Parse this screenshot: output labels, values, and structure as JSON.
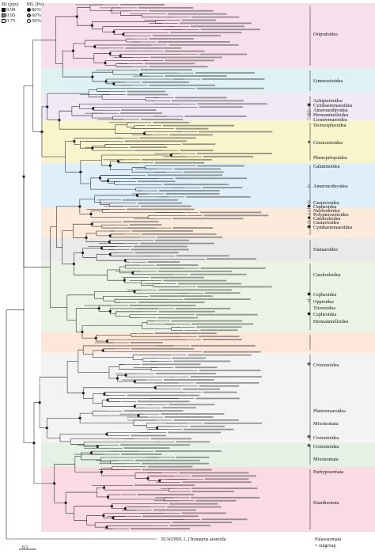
{
  "legend": {
    "header_bi": "BI (pps)",
    "header_ml": "ML (bv)",
    "rows": [
      {
        "bi": "0.99",
        "ml": "80%"
      },
      {
        "bi": "0.95",
        "ml": "60%"
      },
      {
        "bi": "0.75",
        "ml": "50%"
      }
    ]
  },
  "taxa": [
    {
      "label": "Oripodoidea",
      "mark": ""
    },
    {
      "label": "Limnozetoidea",
      "mark": ""
    },
    {
      "label": "Achipterioidea",
      "mark": ""
    },
    {
      "label": "Cymbaeremaeoidea",
      "mark": "◉"
    },
    {
      "label": "Ameronothroidea",
      "mark": "△"
    },
    {
      "label": "Hermannielloidea",
      "mark": "◎"
    },
    {
      "label": "Licneremaeoidea",
      "mark": "□"
    },
    {
      "label": "Tectocepheoidea",
      "mark": ""
    },
    {
      "label": "Ceratozetoidea",
      "mark": "●"
    },
    {
      "label": "Phenopelopoidea",
      "mark": ""
    },
    {
      "label": "Galumnoidea",
      "mark": ""
    },
    {
      "label": "Ameronothroidea",
      "mark": "△"
    },
    {
      "label": "Gustavioidea",
      "mark": "◇"
    },
    {
      "label": "Cepheoidea",
      "mark": "◆"
    },
    {
      "label": "Neoliodoidea",
      "mark": "▽"
    },
    {
      "label": "Polypterozetoidea",
      "mark": "○"
    },
    {
      "label": "Carabodoidea",
      "mark": "■"
    },
    {
      "label": "Gustavioidea",
      "mark": "◇"
    },
    {
      "label": "Cymbaeremaeoidea",
      "mark": "◉"
    },
    {
      "label": "Damaeoidea",
      "mark": ""
    },
    {
      "label": "Carabodoidea",
      "mark": ""
    },
    {
      "label": "Cepheoidea",
      "mark": "◆"
    },
    {
      "label": "Oppioidea",
      "mark": "▽"
    },
    {
      "label": "Trizetoidea",
      "mark": ""
    },
    {
      "label": "Cepheoidea",
      "mark": "◆"
    },
    {
      "label": "Hermannielloidea",
      "mark": ""
    },
    {
      "label": "Crotonioidea",
      "mark": "✥"
    },
    {
      "label": "Plateremaeoidea",
      "mark": ""
    },
    {
      "label": "Mixonomata",
      "mark": ""
    },
    {
      "label": "Crotonioidea",
      "mark": "✥"
    },
    {
      "label": "Crotonioidea",
      "mark": "✥"
    },
    {
      "label": "Mixonomata",
      "mark": ""
    },
    {
      "label": "Parhyposomata",
      "mark": ""
    },
    {
      "label": "Enarthronota",
      "mark": ""
    }
  ],
  "outgroup": {
    "accession": "EU433991.1_Chonaurus arancida",
    "group": "Palaeosomata",
    "note": "= outgroup"
  },
  "scale": "0.1",
  "bands": [
    {
      "color": "#f6dbe9"
    },
    {
      "color": "#d8eef1"
    },
    {
      "color": "#ece6f4"
    },
    {
      "color": "#f7f3c4"
    },
    {
      "color": "#d9ecf8"
    },
    {
      "color": "#fbe8d5"
    },
    {
      "color": "#e6e6e6"
    },
    {
      "color": "#e8f2df"
    },
    {
      "color": "#fde3d1"
    },
    {
      "color": "#f1f1f1"
    },
    {
      "color": "#dff0e2"
    },
    {
      "color": "#f9d4de"
    }
  ]
}
